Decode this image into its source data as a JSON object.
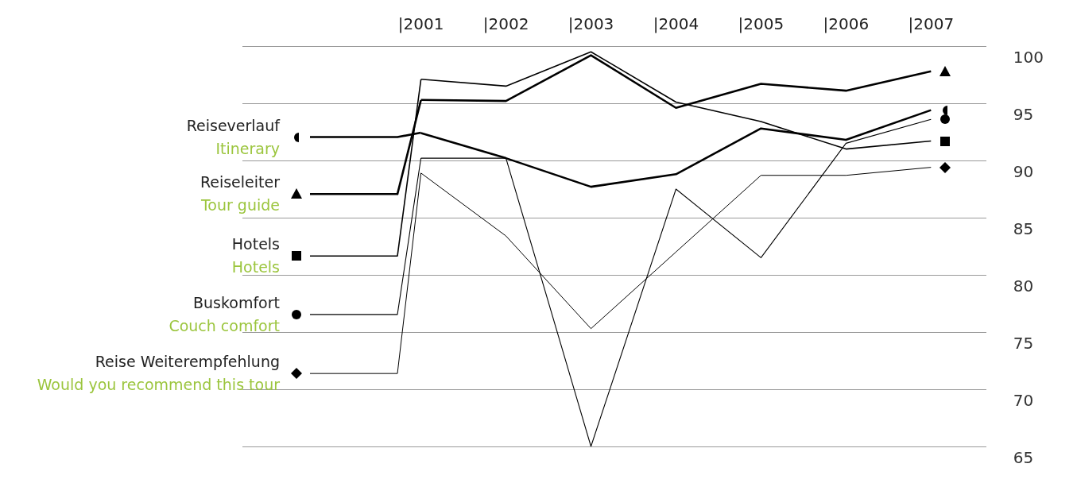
{
  "chart_data": {
    "type": "line",
    "x": [
      2001,
      2002,
      2003,
      2004,
      2005,
      2006,
      2007
    ],
    "xlim": [
      1998.9,
      2007.65
    ],
    "xticks": [
      {
        "value": 2001,
        "label": "|2001"
      },
      {
        "value": 2002,
        "label": "|2002"
      },
      {
        "value": 2003,
        "label": "|2003"
      },
      {
        "value": 2004,
        "label": "|2004"
      },
      {
        "value": 2005,
        "label": "|2005"
      },
      {
        "value": 2006,
        "label": "|2006"
      },
      {
        "value": 2007,
        "label": "|2007"
      }
    ],
    "ylim": [
      65,
      100
    ],
    "yticks": [
      65,
      70,
      75,
      80,
      85,
      90,
      95,
      100
    ],
    "grid": "y",
    "legend": "left",
    "series": [
      {
        "name": "Reiseverlauf\nItinerary",
        "color": "#000000",
        "values": [
          92.4,
          90.2,
          87.7,
          88.8,
          92.8,
          91.8,
          94.4
        ]
      },
      {
        "name": "Reiseleiter\nTour guide",
        "color": "#000000",
        "values": [
          95.3,
          95.2,
          99.2,
          94.6,
          96.7,
          96.1,
          97.8
        ]
      },
      {
        "name": "Hotels\nHotels",
        "color": "#000000",
        "values": [
          97.1,
          96.5,
          99.5,
          95.1,
          93.4,
          91.0,
          91.7
        ]
      },
      {
        "name": "Buskomfort\nCouch comfort",
        "color": "#000000",
        "values": [
          90.2,
          90.2,
          65,
          87.5,
          81.5,
          91.5,
          93.6
        ]
      },
      {
        "name": "Reise Weiterempfehlung\nWould you recommend this tour",
        "color": "#000000",
        "values": [
          88.9,
          83.4,
          75.3,
          82.0,
          88.7,
          88.7,
          89.4
        ]
      }
    ]
  }
}
